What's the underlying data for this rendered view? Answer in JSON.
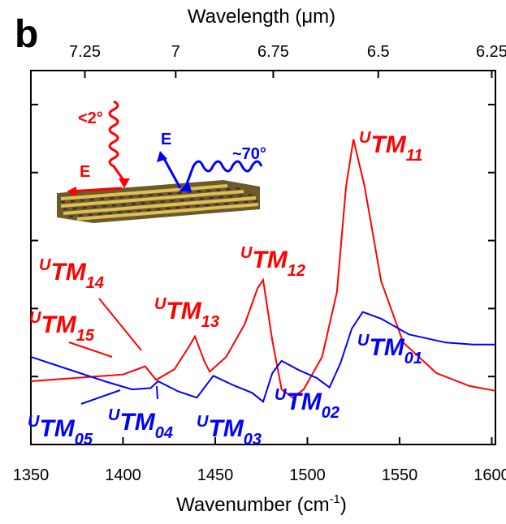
{
  "panel_label": "b",
  "chart_data": {
    "type": "line",
    "xlabel": {
      "text": "Wavenumber (cm",
      "sup": "-1",
      "tail": ")"
    },
    "x2label": "Wavelength (μm)",
    "xlim": [
      1350,
      1602
    ],
    "xticks": [
      1350,
      1400,
      1450,
      1500,
      1550,
      1600
    ],
    "x2ticks": [
      7.25,
      7,
      6.75,
      6.5,
      6.25
    ],
    "ylim": [
      0,
      5.5
    ],
    "yticks": [
      0,
      1,
      2,
      3,
      4,
      5
    ],
    "series": [
      {
        "color": "#ff0000",
        "x": [
          1350,
          1380,
          1400,
          1408,
          1412,
          1418,
          1428,
          1436,
          1439,
          1444,
          1447,
          1456,
          1466,
          1473,
          1476,
          1481,
          1486,
          1492,
          1498,
          1508,
          1516,
          1521,
          1525,
          1531,
          1540,
          1552,
          1570,
          1588,
          1602
        ],
        "values": [
          0.93,
          0.99,
          1.03,
          1.11,
          1.15,
          0.95,
          1.11,
          1.45,
          1.59,
          1.23,
          1.07,
          1.29,
          1.77,
          2.3,
          2.42,
          1.53,
          0.81,
          0.69,
          0.81,
          1.29,
          2.24,
          3.8,
          4.49,
          3.8,
          2.4,
          1.5,
          1.05,
          0.86,
          0.79
        ]
      },
      {
        "color": "#0000ff",
        "x": [
          1350,
          1370,
          1390,
          1405,
          1415,
          1419,
          1430,
          1440,
          1449,
          1460,
          1470,
          1476,
          1481,
          1486,
          1495,
          1505,
          1512,
          1518,
          1524,
          1530,
          1540,
          1555,
          1575,
          1590,
          1602
        ],
        "values": [
          1.29,
          1.11,
          0.93,
          0.81,
          0.83,
          0.93,
          0.78,
          0.69,
          1.01,
          0.87,
          0.76,
          0.63,
          1.05,
          1.23,
          1.1,
          0.98,
          0.84,
          1.2,
          1.7,
          1.95,
          1.85,
          1.62,
          1.5,
          1.47,
          1.47
        ]
      }
    ],
    "annotations": [
      {
        "sup": "U",
        "main": "TM",
        "sub": "11",
        "color": "#ff0000"
      },
      {
        "sup": "U",
        "main": "TM",
        "sub": "12",
        "color": "#ff0000"
      },
      {
        "sup": "U",
        "main": "TM",
        "sub": "13",
        "color": "#ff0000"
      },
      {
        "sup": "U",
        "main": "TM",
        "sub": "14",
        "color": "#ff0000"
      },
      {
        "sup": "U",
        "main": "TM",
        "sub": "15",
        "color": "#ff0000"
      },
      {
        "sup": "U",
        "main": "TM",
        "sub": "01",
        "color": "#0000ff"
      },
      {
        "sup": "U",
        "main": "TM",
        "sub": "02",
        "color": "#0000ff"
      },
      {
        "sup": "U",
        "main": "TM",
        "sub": "03",
        "color": "#0000ff"
      },
      {
        "sup": "U",
        "main": "TM",
        "sub": "04",
        "color": "#0000ff"
      },
      {
        "sup": "U",
        "main": "TM",
        "sub": "05",
        "color": "#0000ff"
      }
    ],
    "inset_labels": {
      "angle_normal": "<2°",
      "field_normal": "E",
      "field_oblique": "E",
      "angle_oblique": "~70°"
    }
  }
}
